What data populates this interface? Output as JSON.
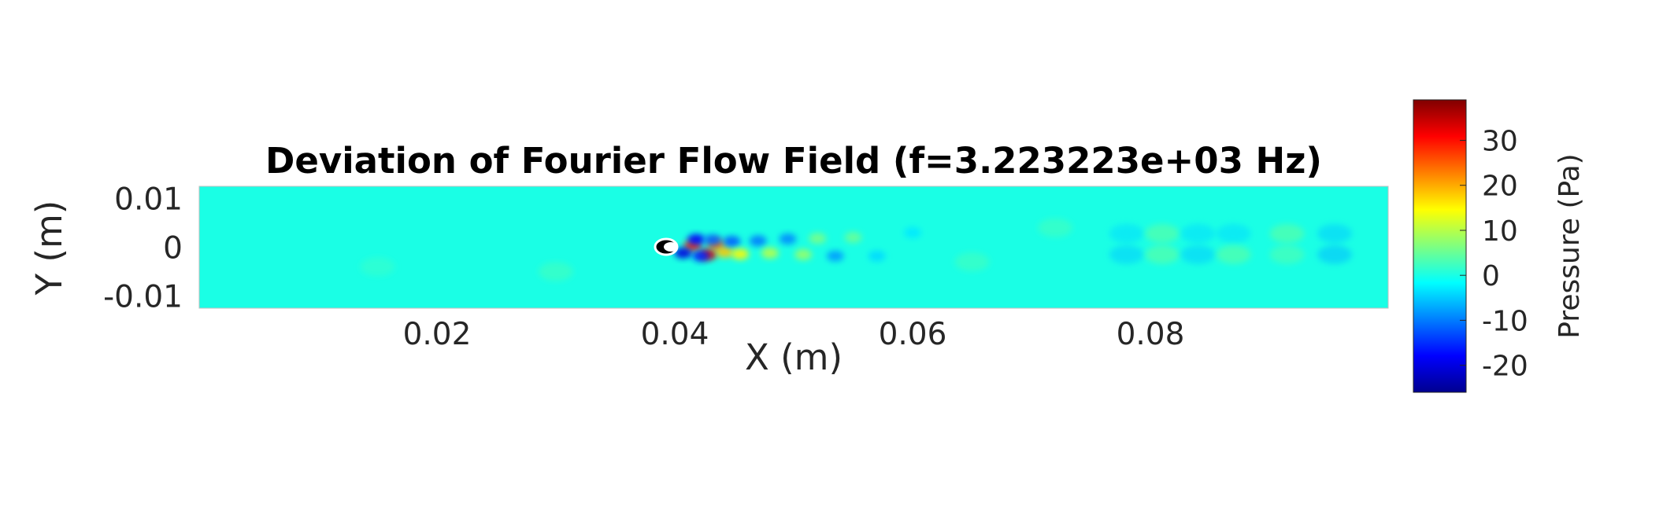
{
  "chart_data": {
    "type": "heatmap",
    "title": "Deviation of Fourier Flow Field (f=3.223223e+03 Hz)",
    "xlabel": "X (m)",
    "ylabel": "Y (m)",
    "xlim": [
      0,
      0.1
    ],
    "ylim": [
      -0.0125,
      0.0125
    ],
    "x_ticks": [
      0.02,
      0.04,
      0.06,
      0.08
    ],
    "x_tick_labels": [
      "0.02",
      "0.04",
      "0.06",
      "0.08"
    ],
    "y_ticks": [
      0.01,
      0,
      -0.01
    ],
    "y_tick_labels": [
      "0.01",
      "0",
      "-0.01"
    ],
    "background_value": 0,
    "colormap": "jet",
    "colorbar": {
      "label": "Pressure (Pa)",
      "range": [
        -26,
        39
      ],
      "ticks": [
        30,
        20,
        10,
        0,
        -10,
        -20
      ],
      "tick_labels": [
        "30",
        "20",
        "10",
        "0",
        "-10",
        "-20"
      ]
    },
    "body": {
      "shape": "elliptical cylinder",
      "center": [
        0.0393,
        0
      ]
    },
    "features": [
      {
        "x": 0.0415,
        "y": 0.0003,
        "value": 28
      },
      {
        "x": 0.0428,
        "y": -0.0015,
        "value": 33
      },
      {
        "x": 0.0435,
        "y": 0.0005,
        "value": 24
      },
      {
        "x": 0.0442,
        "y": -0.001,
        "value": 18
      },
      {
        "x": 0.0407,
        "y": -0.0012,
        "value": -20
      },
      {
        "x": 0.0418,
        "y": 0.0016,
        "value": -18
      },
      {
        "x": 0.0432,
        "y": 0.0015,
        "value": -12
      },
      {
        "x": 0.0422,
        "y": -0.0018,
        "value": -16
      },
      {
        "x": 0.0448,
        "y": 0.0012,
        "value": -12
      },
      {
        "x": 0.0455,
        "y": -0.0014,
        "value": 15
      },
      {
        "x": 0.047,
        "y": 0.0013,
        "value": -10
      },
      {
        "x": 0.048,
        "y": -0.0012,
        "value": 10
      },
      {
        "x": 0.0495,
        "y": 0.0017,
        "value": -9
      },
      {
        "x": 0.0508,
        "y": -0.0015,
        "value": 8
      },
      {
        "x": 0.052,
        "y": 0.0018,
        "value": 6
      },
      {
        "x": 0.0535,
        "y": -0.0018,
        "value": -8
      },
      {
        "x": 0.055,
        "y": 0.002,
        "value": 5
      },
      {
        "x": 0.057,
        "y": -0.0018,
        "value": -4
      },
      {
        "x": 0.06,
        "y": 0.003,
        "value": -3
      },
      {
        "x": 0.065,
        "y": -0.003,
        "value": 3
      },
      {
        "x": 0.072,
        "y": 0.004,
        "value": 3
      },
      {
        "x": 0.078,
        "y": 0.0028,
        "value": -4
      },
      {
        "x": 0.078,
        "y": -0.0015,
        "value": -5
      },
      {
        "x": 0.081,
        "y": 0.0028,
        "value": 5
      },
      {
        "x": 0.081,
        "y": -0.0015,
        "value": 5
      },
      {
        "x": 0.084,
        "y": 0.0028,
        "value": -4
      },
      {
        "x": 0.084,
        "y": -0.0015,
        "value": -5
      },
      {
        "x": 0.087,
        "y": 0.0028,
        "value": -4
      },
      {
        "x": 0.087,
        "y": -0.0015,
        "value": 5
      },
      {
        "x": 0.0915,
        "y": 0.0028,
        "value": 5
      },
      {
        "x": 0.0915,
        "y": -0.0015,
        "value": 4
      },
      {
        "x": 0.0955,
        "y": 0.0028,
        "value": -5
      },
      {
        "x": 0.0955,
        "y": -0.0015,
        "value": -6
      },
      {
        "x": 0.03,
        "y": -0.005,
        "value": 3
      },
      {
        "x": 0.015,
        "y": -0.004,
        "value": 2
      }
    ]
  }
}
